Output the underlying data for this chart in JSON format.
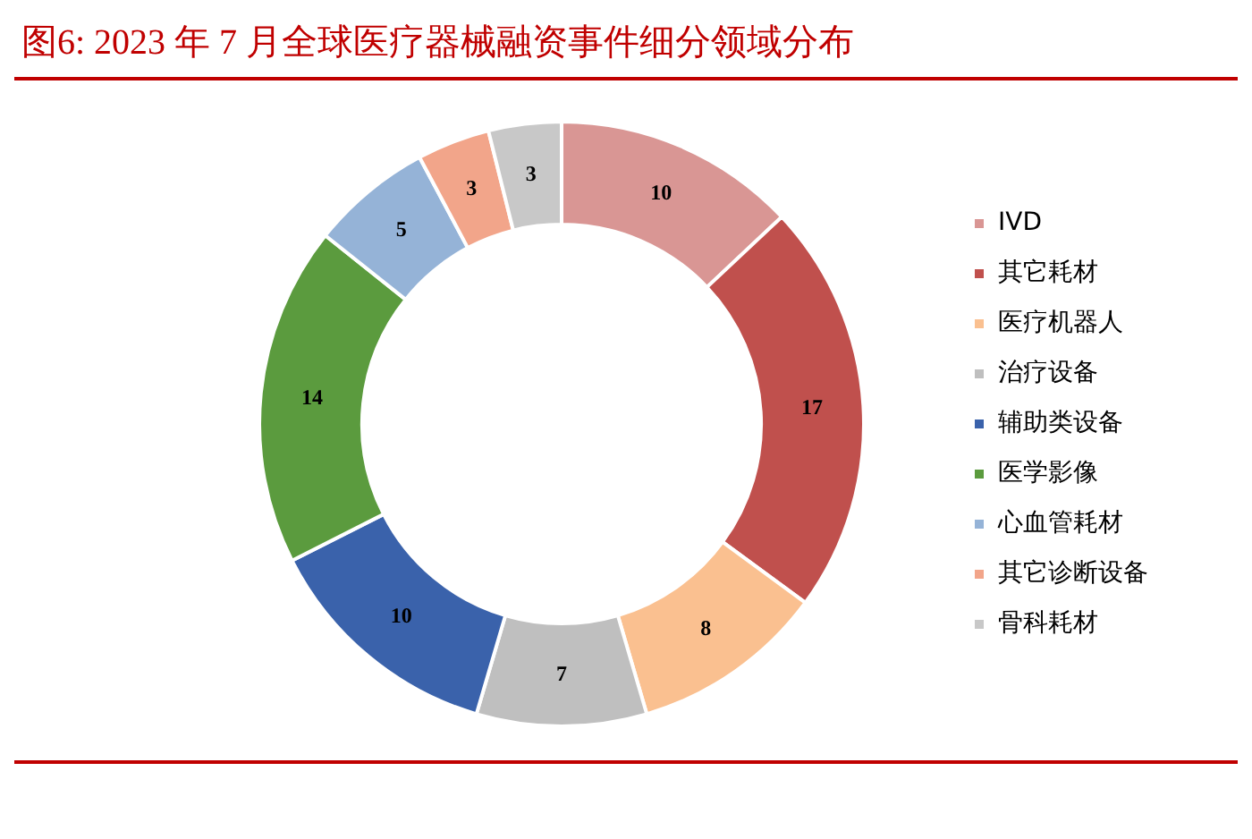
{
  "chart_data": {
    "type": "donut",
    "title": "图6:  2023 年 7 月全球医疗器械融资事件细分领域分布",
    "categories": [
      "IVD",
      "其它耗材",
      "医疗机器人",
      "治疗设备",
      "辅助类设备",
      "医学影像",
      "心血管耗材",
      "其它诊断设备",
      "骨科耗材"
    ],
    "values": [
      10,
      17,
      8,
      7,
      10,
      14,
      5,
      3,
      3
    ],
    "colors": [
      "#d99694",
      "#c0504d",
      "#fac090",
      "#bfbfbf",
      "#3a62ab",
      "#5b9b3e",
      "#95b3d7",
      "#f2a58a",
      "#c8c8c8"
    ],
    "legend": "right",
    "data_labels": true
  }
}
